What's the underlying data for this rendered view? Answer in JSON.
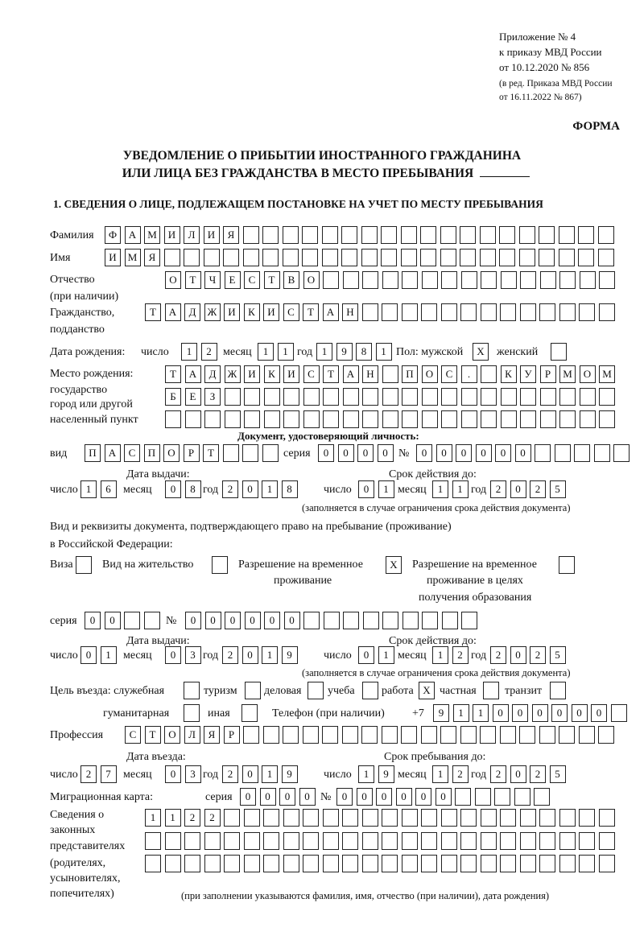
{
  "header": {
    "appendix": "Приложение № 4",
    "order": "к приказу МВД России",
    "order_date": "от 10.12.2020 № 856",
    "edition1": "(в ред. Приказа МВД России",
    "edition2": "от 16.11.2022 № 867)",
    "form_label": "ФОРМА",
    "title1": "УВЕДОМЛЕНИЕ О ПРИБЫТИИ ИНОСТРАННОГО ГРАЖДАНИНА",
    "title2": "ИЛИ ЛИЦА БЕЗ ГРАЖДАНСТВА В МЕСТО ПРЕБЫВАНИЯ",
    "section1": "1. СВЕДЕНИЯ О ЛИЦЕ, ПОДЛЕЖАЩЕМ ПОСТАНОВКЕ НА УЧЕТ ПО МЕСТУ ПРЕБЫВАНИЯ"
  },
  "labels": {
    "surname": "Фамилия",
    "name": "Имя",
    "patronymic": "Отчество",
    "patronymic_note": "(при наличии)",
    "citizenship1": "Гражданство,",
    "citizenship2": "подданство",
    "birth_date": "Дата рождения:",
    "day": "число",
    "month": "месяц",
    "year": "год",
    "sex_male": "Пол: мужской",
    "sex_female": "женский",
    "birth_place1": "Место рождения:",
    "birth_place2": "государство",
    "birth_place3": "город или другой",
    "birth_place4": "населенный пункт",
    "id_doc": "Документ, удостоверяющий личность:",
    "kind": "вид",
    "series": "серия",
    "number": "№",
    "issue_date": "Дата выдачи:",
    "valid_until": "Срок действия до:",
    "validity_note": "(заполняется в случае ограничения срока действия документа)",
    "stay_doc1": "Вид и реквизиты документа, подтверждающего право на пребывание (проживание)",
    "stay_doc2": "в Российской Федерации:",
    "visa": "Виза",
    "residence": "Вид на жительство",
    "temp1": "Разрешение на временное",
    "temp2": "проживание",
    "temp_edu1": "Разрешение на временное",
    "temp_edu2": "проживание в целях",
    "temp_edu3": "получения образования",
    "purpose": "Цель въезда: служебная",
    "tourism": "туризм",
    "business": "деловая",
    "study": "учеба",
    "work": "работа",
    "private": "частная",
    "transit": "транзит",
    "humanitarian": "гуманитарная",
    "other": "иная",
    "phone": "Телефон (при наличии)",
    "phone_prefix": "+7",
    "profession": "Профессия",
    "entry_date": "Дата въезда:",
    "stay_until": "Срок пребывания до:",
    "migration_card": "Миграционная карта:",
    "reps1": "Сведения о",
    "reps2": "законных",
    "reps3": "представителях",
    "reps4": "(родителях,",
    "reps5": "усыновителях,",
    "reps6": "попечителях)",
    "reps_note": "(при заполнении указываются фамилия, имя, отчество (при наличии), дата рождения)"
  },
  "person": {
    "surname": "ФАМИЛИЯ",
    "name": "ИМЯ",
    "patronymic": "ОТЧЕСТВО",
    "citizenship": "ТАДЖИКИСТАН",
    "birth_day": "12",
    "birth_month": "11",
    "birth_year": "1981",
    "sex_male": "X",
    "sex_female": "",
    "birth_place": "ТАДЖИКИСТАН ПОС. КУРМОМБЕЗ"
  },
  "id_document": {
    "kind": "ПАСПОРТ",
    "series": "0000",
    "number": "000000",
    "issue_day": "16",
    "issue_month": "08",
    "issue_year": "2018",
    "valid_day": "01",
    "valid_month": "11",
    "valid_year": "2025"
  },
  "stay_document": {
    "visa": "",
    "residence": "",
    "temp": "X",
    "temp_edu": "",
    "series": "00",
    "number": "000000",
    "issue_day": "01",
    "issue_month": "03",
    "issue_year": "2019",
    "valid_day": "01",
    "valid_month": "12",
    "valid_year": "2025"
  },
  "purpose": {
    "official": "",
    "tourism": "",
    "business": "",
    "study": "",
    "work": "X",
    "private": "",
    "transit": "",
    "humanitarian": "",
    "other": ""
  },
  "phone": "911000000",
  "profession": "СТОЛЯР",
  "entry": {
    "day": "27",
    "month": "03",
    "year": "2019"
  },
  "stay_until": {
    "day": "19",
    "month": "12",
    "year": "2025"
  },
  "migration_card": {
    "series": "0000",
    "number": "000000"
  },
  "representatives": "1122"
}
